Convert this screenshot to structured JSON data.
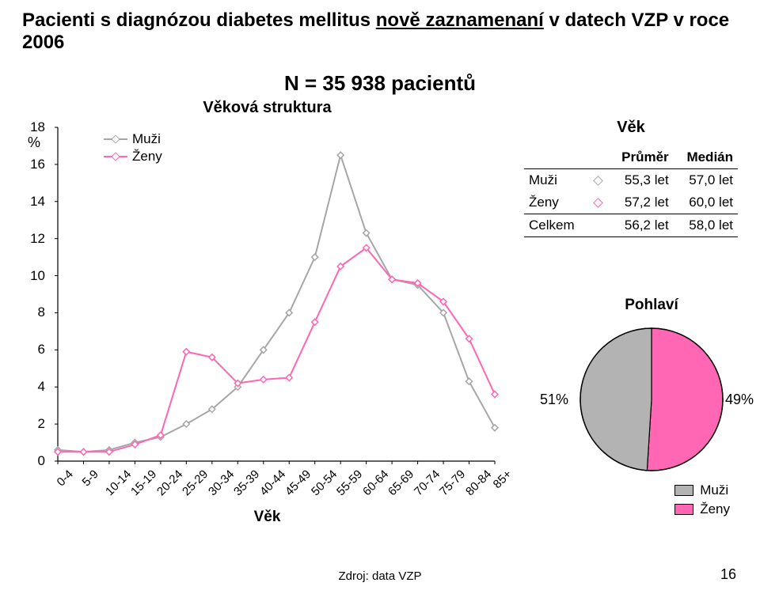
{
  "title_part1": "Pacienti s diagnózou diabetes mellitus ",
  "title_underlined": "nově zaznamenaní",
  "title_part2": " v datech VZP v roce 2006",
  "subtitle": "N = 35 938 pacientů",
  "source": "Zdroj: data VZP",
  "page_number": "16",
  "line_chart": {
    "title": "Věková struktura",
    "y_percent_label": "%",
    "x_label": "Věk",
    "ylim": [
      0,
      18
    ],
    "ytick_step": 2,
    "yticks": [
      0,
      2,
      4,
      6,
      8,
      10,
      12,
      14,
      16,
      18
    ],
    "categories": [
      "0-4",
      "5-9",
      "10-14",
      "15-19",
      "20-24",
      "25-29",
      "30-34",
      "35-39",
      "40-44",
      "45-49",
      "50-54",
      "55-59",
      "60-64",
      "65-69",
      "70-74",
      "75-79",
      "80-84",
      "85+"
    ],
    "series": [
      {
        "name": "Muži",
        "color": "#a6a6a6",
        "values": [
          0.6,
          0.5,
          0.6,
          1.0,
          1.3,
          2.0,
          2.8,
          4.0,
          6.0,
          8.0,
          11.0,
          16.5,
          12.3,
          9.8,
          9.5,
          8.0,
          4.3,
          1.8
        ]
      },
      {
        "name": "Ženy",
        "color": "#ff66b3",
        "values": [
          0.5,
          0.5,
          0.5,
          0.9,
          1.4,
          5.9,
          5.6,
          4.2,
          4.4,
          4.5,
          7.5,
          10.5,
          11.5,
          9.8,
          9.6,
          8.6,
          6.6,
          3.6
        ]
      }
    ],
    "axis_color": "#000000",
    "tick_font_size": 17,
    "marker_style": "diamond",
    "line_width": 2,
    "marker_size": 8
  },
  "age_table": {
    "header": "Věk",
    "columns": [
      "",
      "",
      "Průměr",
      "Medián"
    ],
    "rows": [
      {
        "label": "Muži",
        "marker_color": "#a6a6a6",
        "avg": "55,3 let",
        "median": "57,0 let"
      },
      {
        "label": "Ženy",
        "marker_color": "#ff66b3",
        "avg": "57,2 let",
        "median": "60,0 let"
      }
    ],
    "total": {
      "label": "Celkem",
      "avg": "56,2 let",
      "median": "58,0 let"
    }
  },
  "pie": {
    "title": "Pohlaví",
    "slices": [
      {
        "label": "Muži",
        "percent": 49,
        "color": "#b3b3b3",
        "text": "49%"
      },
      {
        "label": "Ženy",
        "percent": 51,
        "color": "#ff66b3",
        "text": "51%"
      }
    ],
    "stroke": "#000000",
    "radius": 90,
    "three_d": true,
    "legend_labels": [
      "Muži",
      "Ženy"
    ]
  }
}
